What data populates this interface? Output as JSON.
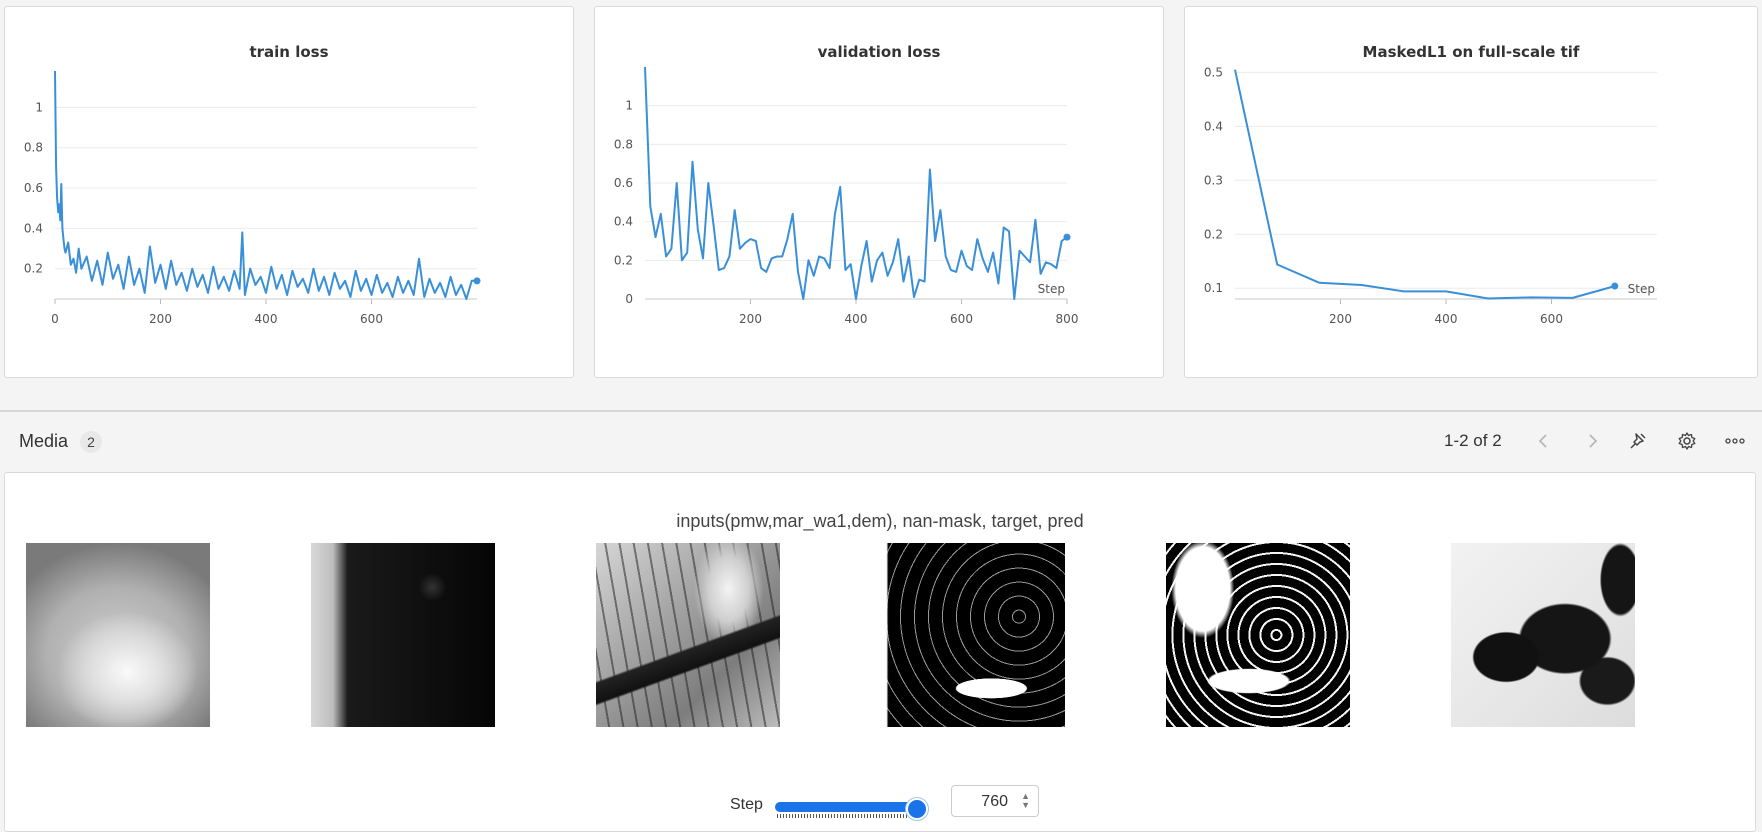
{
  "chart_data": [
    {
      "type": "line",
      "title": "train loss",
      "xlabel": "",
      "ylabel": "",
      "xlim": [
        0,
        800
      ],
      "ylim": [
        0.05,
        1.2
      ],
      "xticks": [
        0,
        200,
        400,
        600
      ],
      "yticks": [
        0.2,
        0.4,
        0.6,
        0.8,
        1
      ],
      "grid": true,
      "series": [
        {
          "color": "#3a90d8",
          "x": [
            0,
            2,
            4,
            6,
            8,
            10,
            12,
            14,
            16,
            18,
            20,
            25,
            30,
            35,
            40,
            45,
            50,
            60,
            70,
            80,
            90,
            100,
            110,
            120,
            130,
            140,
            150,
            160,
            170,
            180,
            190,
            200,
            210,
            220,
            230,
            240,
            250,
            260,
            270,
            280,
            290,
            300,
            310,
            320,
            330,
            340,
            350,
            355,
            360,
            370,
            380,
            390,
            400,
            410,
            420,
            430,
            440,
            450,
            460,
            470,
            480,
            490,
            500,
            510,
            520,
            530,
            540,
            550,
            560,
            570,
            580,
            590,
            600,
            610,
            620,
            630,
            640,
            650,
            660,
            670,
            680,
            690,
            700,
            710,
            720,
            730,
            740,
            750,
            760,
            770,
            780,
            790,
            800
          ],
          "y": [
            1.18,
            0.7,
            0.55,
            0.48,
            0.52,
            0.44,
            0.62,
            0.4,
            0.35,
            0.3,
            0.28,
            0.33,
            0.22,
            0.25,
            0.18,
            0.3,
            0.2,
            0.26,
            0.14,
            0.24,
            0.12,
            0.28,
            0.15,
            0.22,
            0.1,
            0.26,
            0.12,
            0.2,
            0.08,
            0.31,
            0.13,
            0.22,
            0.1,
            0.24,
            0.12,
            0.18,
            0.09,
            0.2,
            0.11,
            0.17,
            0.08,
            0.21,
            0.1,
            0.16,
            0.09,
            0.19,
            0.1,
            0.38,
            0.07,
            0.2,
            0.12,
            0.16,
            0.08,
            0.21,
            0.1,
            0.17,
            0.07,
            0.19,
            0.11,
            0.15,
            0.08,
            0.2,
            0.09,
            0.16,
            0.07,
            0.18,
            0.1,
            0.14,
            0.06,
            0.19,
            0.09,
            0.15,
            0.07,
            0.17,
            0.08,
            0.13,
            0.06,
            0.16,
            0.08,
            0.14,
            0.07,
            0.25,
            0.06,
            0.15,
            0.08,
            0.13,
            0.06,
            0.16,
            0.07,
            0.12,
            0.05,
            0.14,
            0.14
          ]
        }
      ]
    },
    {
      "type": "line",
      "title": "validation loss",
      "xlabel": "Step",
      "ylabel": "",
      "xlim": [
        0,
        800
      ],
      "ylim": [
        0,
        1.2
      ],
      "xticks": [
        200,
        400,
        600,
        800
      ],
      "yticks": [
        0,
        0.2,
        0.4,
        0.6,
        0.8,
        1
      ],
      "grid": true,
      "series": [
        {
          "color": "#3a90d8",
          "x": [
            0,
            10,
            20,
            30,
            40,
            50,
            60,
            70,
            80,
            90,
            100,
            110,
            120,
            130,
            140,
            150,
            160,
            170,
            180,
            190,
            200,
            210,
            220,
            230,
            240,
            250,
            260,
            270,
            280,
            290,
            300,
            310,
            320,
            330,
            340,
            350,
            360,
            370,
            380,
            390,
            400,
            410,
            420,
            430,
            440,
            450,
            460,
            470,
            480,
            490,
            500,
            510,
            520,
            530,
            540,
            550,
            560,
            570,
            580,
            590,
            600,
            610,
            620,
            630,
            640,
            650,
            660,
            670,
            680,
            690,
            700,
            710,
            720,
            730,
            740,
            750,
            760,
            770,
            780,
            790,
            800
          ],
          "y": [
            1.2,
            0.48,
            0.32,
            0.44,
            0.22,
            0.26,
            0.6,
            0.2,
            0.24,
            0.71,
            0.36,
            0.21,
            0.6,
            0.38,
            0.15,
            0.16,
            0.22,
            0.46,
            0.26,
            0.29,
            0.31,
            0.3,
            0.16,
            0.14,
            0.21,
            0.22,
            0.22,
            0.31,
            0.44,
            0.14,
            0,
            0.2,
            0.12,
            0.22,
            0.21,
            0.16,
            0.44,
            0.58,
            0.15,
            0.18,
            0,
            0.17,
            0.3,
            0.09,
            0.2,
            0.24,
            0.12,
            0.19,
            0.31,
            0.09,
            0.22,
            0.01,
            0.1,
            0.09,
            0.67,
            0.3,
            0.46,
            0.22,
            0.15,
            0.14,
            0.25,
            0.17,
            0.15,
            0.31,
            0.21,
            0.14,
            0.24,
            0.08,
            0.37,
            0.35,
            0,
            0.25,
            0.22,
            0.19,
            0.41,
            0.13,
            0.19,
            0.18,
            0.16,
            0.3,
            0.32
          ]
        }
      ]
    },
    {
      "type": "line",
      "title": "MaskedL1 on full-scale tif",
      "xlabel": "Step",
      "ylabel": "",
      "xlim": [
        0,
        800
      ],
      "ylim": [
        0.08,
        0.51
      ],
      "xticks": [
        200,
        400,
        600
      ],
      "yticks": [
        0.1,
        0.2,
        0.3,
        0.4,
        0.5
      ],
      "grid": true,
      "series": [
        {
          "color": "#3a90d8",
          "x": [
            0,
            80,
            160,
            240,
            320,
            400,
            480,
            560,
            640,
            720
          ],
          "y": [
            0.505,
            0.144,
            0.11,
            0.106,
            0.094,
            0.094,
            0.081,
            0.083,
            0.082,
            0.104
          ]
        }
      ]
    }
  ],
  "media": {
    "title": "Media",
    "count": "2",
    "pager": "1-2 of 2",
    "caption": "inputs(pmw,mar_wa1,dem), nan-mask, target, pred",
    "step_label": "Step",
    "step_value": "760",
    "slider_fraction": 0.95,
    "icons": [
      "chevron-left-icon",
      "chevron-right-icon",
      "pin-icon",
      "gear-icon",
      "more-icon"
    ]
  }
}
